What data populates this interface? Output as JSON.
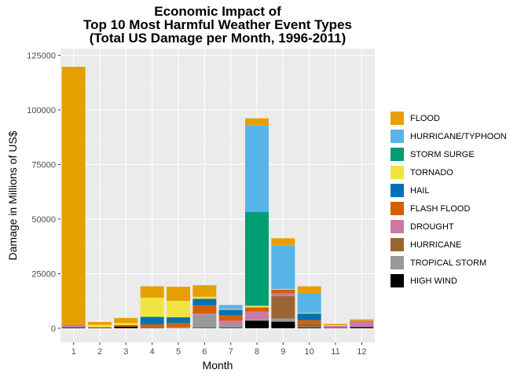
{
  "chart_data": {
    "type": "bar",
    "stacked": true,
    "title": [
      "Economic Impact of",
      "Top 10 Most Harmful Weather Event Types",
      "(Total US Damage per Month, 1996-2011)"
    ],
    "xlabel": "Month",
    "ylabel": "Damage in Millions of US$",
    "categories": [
      "1",
      "2",
      "3",
      "4",
      "5",
      "6",
      "7",
      "8",
      "9",
      "10",
      "11",
      "12"
    ],
    "ylim": [
      -6500,
      128000
    ],
    "yticks": [
      0,
      25000,
      50000,
      75000,
      100000,
      125000
    ],
    "ytick_labels": [
      "0",
      "25000",
      "50000",
      "75000",
      "100000",
      "125000"
    ],
    "legend_position": "right",
    "grid": true,
    "series": [
      {
        "name": "HIGH WIND",
        "color": "#000000",
        "values": [
          300,
          150,
          700,
          200,
          100,
          200,
          250,
          3500,
          3000,
          400,
          200,
          500
        ]
      },
      {
        "name": "TROPICAL STORM",
        "color": "#999999",
        "values": [
          0,
          0,
          0,
          0,
          0,
          6000,
          1500,
          200,
          1500,
          300,
          0,
          0
        ]
      },
      {
        "name": "HURRICANE",
        "color": "#996633",
        "values": [
          0,
          0,
          0,
          0,
          0,
          0,
          0,
          0,
          10200,
          1500,
          0,
          0
        ]
      },
      {
        "name": "DROUGHT",
        "color": "#cc79a7",
        "values": [
          1000,
          0,
          0,
          300,
          500,
          500,
          1700,
          3900,
          1300,
          0,
          900,
          2700
        ]
      },
      {
        "name": "FLASH FLOOD",
        "color": "#d55e00",
        "values": [
          300,
          300,
          400,
          1300,
          1900,
          3800,
          2500,
          1900,
          1700,
          1500,
          0,
          300
        ]
      },
      {
        "name": "HAIL",
        "color": "#0072b2",
        "values": [
          0,
          0,
          300,
          3400,
          2500,
          3000,
          2500,
          0,
          0,
          3000,
          0,
          0
        ]
      },
      {
        "name": "TORNADO",
        "color": "#f0e442",
        "values": [
          100,
          1100,
          1000,
          8800,
          7500,
          900,
          400,
          800,
          300,
          300,
          300,
          200
        ]
      },
      {
        "name": "STORM SURGE",
        "color": "#009e73",
        "values": [
          0,
          0,
          0,
          0,
          0,
          0,
          0,
          43000,
          0,
          0,
          0,
          0
        ]
      },
      {
        "name": "HURRICANE/TYPHOON",
        "color": "#56b4e9",
        "values": [
          0,
          0,
          0,
          0,
          0,
          0,
          1800,
          39500,
          20000,
          9000,
          0,
          0
        ]
      },
      {
        "name": "FLOOD",
        "color": "#e69f00",
        "values": [
          118000,
          1300,
          2300,
          5200,
          6500,
          5300,
          0,
          3300,
          3200,
          3200,
          600,
          400
        ]
      }
    ]
  },
  "legend": [
    {
      "label": "FLOOD",
      "color": "#e69f00"
    },
    {
      "label": "HURRICANE/TYPHOON",
      "color": "#56b4e9"
    },
    {
      "label": "STORM SURGE",
      "color": "#009e73"
    },
    {
      "label": "TORNADO",
      "color": "#f0e442"
    },
    {
      "label": "HAIL",
      "color": "#0072b2"
    },
    {
      "label": "FLASH FLOOD",
      "color": "#d55e00"
    },
    {
      "label": "DROUGHT",
      "color": "#cc79a7"
    },
    {
      "label": "HURRICANE",
      "color": "#996633"
    },
    {
      "label": "TROPICAL STORM",
      "color": "#999999"
    },
    {
      "label": "HIGH WIND",
      "color": "#000000"
    }
  ]
}
